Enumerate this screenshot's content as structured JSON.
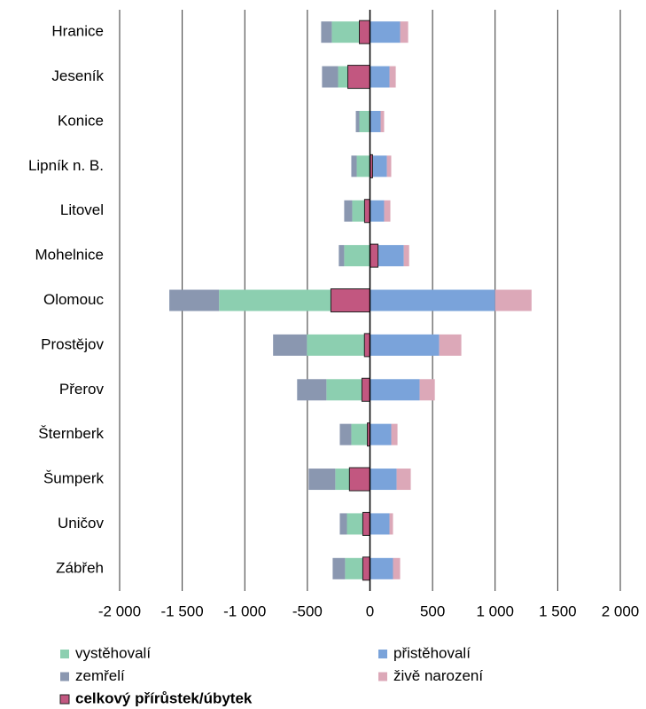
{
  "chart_data": {
    "type": "bar",
    "orientation": "horizontal",
    "categories": [
      "Hranice",
      "Jeseník",
      "Konice",
      "Lipník n. B.",
      "Litovel",
      "Mohelnice",
      "Olomouc",
      "Prostějov",
      "Přerov",
      "Šternberk",
      "Šumperk",
      "Uničov",
      "Zábřeh"
    ],
    "series": [
      {
        "name": "vystěhovalí",
        "color": "#8ccfb0",
        "values": [
          -305,
          -255,
          -85,
          -106,
          -142,
          -206,
          -1206,
          -504,
          -348,
          -149,
          -277,
          -184,
          -199
        ]
      },
      {
        "name": "přistěhovalí",
        "color": "#7aa3da",
        "values": [
          241,
          156,
          85,
          135,
          113,
          270,
          1000,
          553,
          397,
          170,
          213,
          156,
          184
        ]
      },
      {
        "name": "zemřelí",
        "color": "#8a97b0",
        "values": [
          -85,
          -128,
          -28,
          -43,
          -64,
          -43,
          -397,
          -270,
          -234,
          -92,
          -213,
          -57,
          -99
        ]
      },
      {
        "name": "živě narození",
        "color": "#dca8b8",
        "values": [
          64,
          50,
          28,
          35,
          50,
          43,
          291,
          177,
          121,
          50,
          113,
          28,
          57
        ]
      },
      {
        "name": "celkový přírůstek/úbytek",
        "color": "#c25780",
        "overlay": true,
        "values": [
          -85,
          -177,
          0,
          21,
          -43,
          64,
          -312,
          -44,
          -64,
          -21,
          -164,
          -57,
          -57
        ]
      }
    ],
    "xlim": [
      -2000,
      2000
    ],
    "xticks": [
      {
        "value": -2000,
        "label": "-2 000"
      },
      {
        "value": -1500,
        "label": "-1 500"
      },
      {
        "value": -1000,
        "label": "-1 000"
      },
      -500,
      0,
      500,
      {
        "value": 1000,
        "label": "1 000"
      },
      {
        "value": 1500,
        "label": "1 500"
      },
      {
        "value": 2000,
        "label": "2 000"
      }
    ],
    "grid": true
  }
}
